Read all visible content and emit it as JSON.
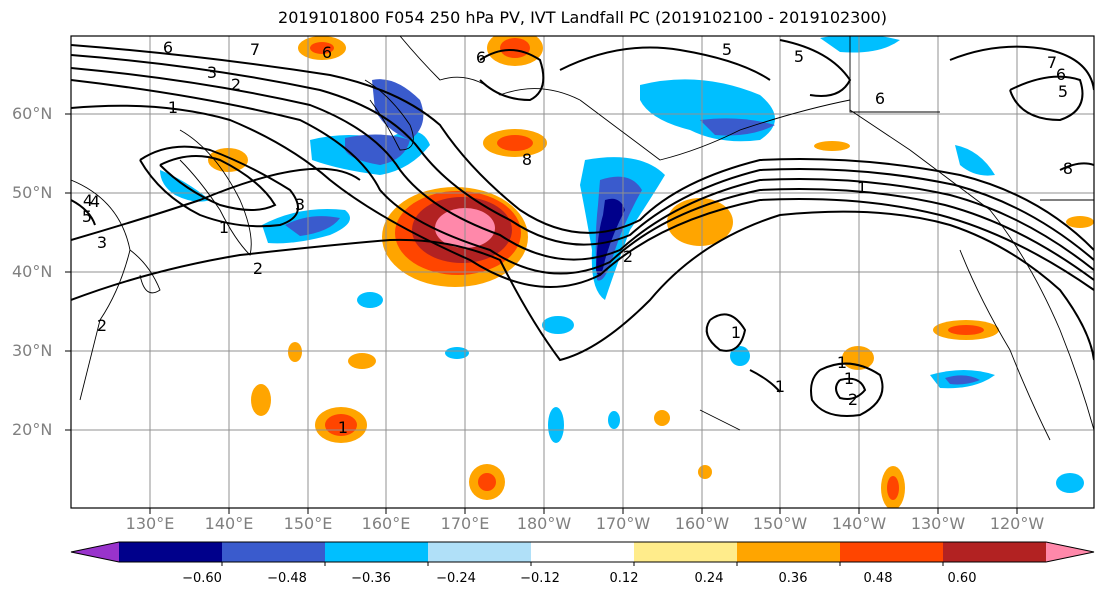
{
  "title": "2019101800 F054 250 hPa PV, IVT Landfall PC (2019102100 - 2019102300)",
  "lat_labels": [
    "60°N",
    "50°N",
    "40°N",
    "30°N",
    "20°N"
  ],
  "lon_labels": [
    "130°E",
    "140°E",
    "150°E",
    "160°E",
    "170°E",
    "180°W",
    "170°W",
    "160°W",
    "150°W",
    "140°W",
    "130°W",
    "120°W"
  ],
  "colorbar": {
    "colors": [
      "#9933cc",
      "#00008b",
      "#3a5bcd",
      "#00bfff",
      "#b0e0f8",
      "#ffffff",
      "#ffec8b",
      "#ffa500",
      "#ff4500",
      "#b22222",
      "#ff88aa"
    ],
    "tick_labels": [
      "−0.60",
      "−0.48",
      "−0.36",
      "−0.24",
      "−0.12",
      "0.12",
      "0.24",
      "0.36",
      "0.48",
      "0.60"
    ]
  },
  "contour_labels": [
    "6",
    "4",
    "3",
    "2",
    "1",
    "2",
    "6",
    "5",
    "5",
    "6",
    "6",
    "7",
    "8",
    "4",
    "5",
    "3",
    "3",
    "2",
    "1",
    "8",
    "1",
    "1",
    "1",
    "1",
    "2",
    "1",
    "2",
    "1",
    "7",
    "6",
    "5"
  ],
  "chart_data": {
    "type": "map",
    "title": "2019101800 F054 250 hPa PV, IVT Landfall PC (2019102100 - 2019102300)",
    "lat_ticks": [
      60,
      50,
      40,
      30,
      20
    ],
    "lon_ticks": [
      "130°E",
      "140°E",
      "150°E",
      "160°E",
      "170°E",
      "180°W",
      "170°W",
      "160°W",
      "150°W",
      "140°W",
      "130°W",
      "120°W"
    ],
    "colorbar_levels": [
      -0.6,
      -0.48,
      -0.36,
      -0.24,
      -0.12,
      0.12,
      0.24,
      0.36,
      0.48,
      0.6
    ],
    "contour_field": "250 hPa PV",
    "shaded_field": "IVT Landfall PC"
  }
}
